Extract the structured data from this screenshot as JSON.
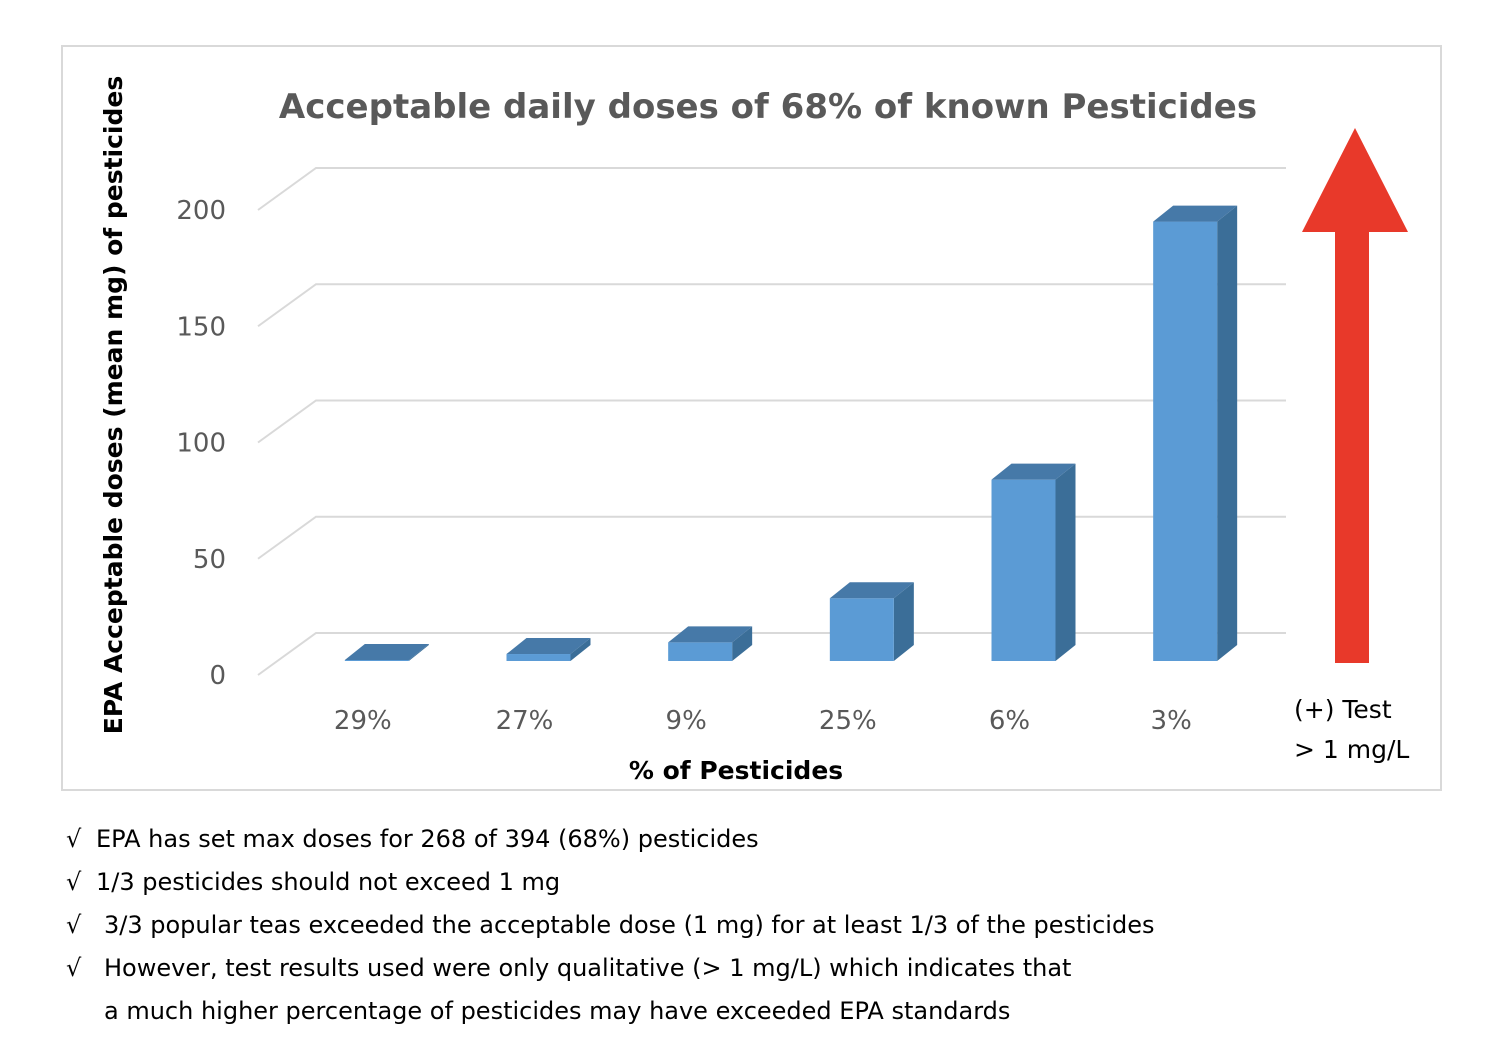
{
  "chart_data": {
    "type": "bar",
    "title": "Acceptable daily doses of 68% of known Pesticides",
    "xlabel": "% of Pesticides",
    "ylabel": "EPA Acceptable doses (mean mg)  of pesticides",
    "categories": [
      "29%",
      "27%",
      "9%",
      "25%",
      "6%",
      "3%"
    ],
    "values": [
      0.2,
      3,
      8,
      27,
      78,
      189
    ],
    "ylim": [
      0,
      200
    ],
    "yticks": [
      "0",
      "50",
      "100",
      "150",
      "200"
    ],
    "grid": true,
    "style": "3d-column",
    "bar_color": "#5b9bd5",
    "bar_side_color": "#3b6e98",
    "bar_top_color": "#4679a8",
    "arrow_color": "#e8392a",
    "annotation_line1": "(+) Test",
    "annotation_line2": "> 1 mg/L"
  },
  "notes": {
    "check_symbol": "√",
    "line1": "EPA has set max doses for 268 of 394 (68%) pesticides",
    "line2": "1/3 pesticides should not exceed 1 mg",
    "line3": "3/3 popular teas exceeded the acceptable dose (1 mg) for at least 1/3 of the pesticides",
    "line4": "However, test results used were only qualitative (> 1 mg/L) which indicates that",
    "line5": "a much higher percentage of pesticides may have exceeded EPA standards"
  }
}
